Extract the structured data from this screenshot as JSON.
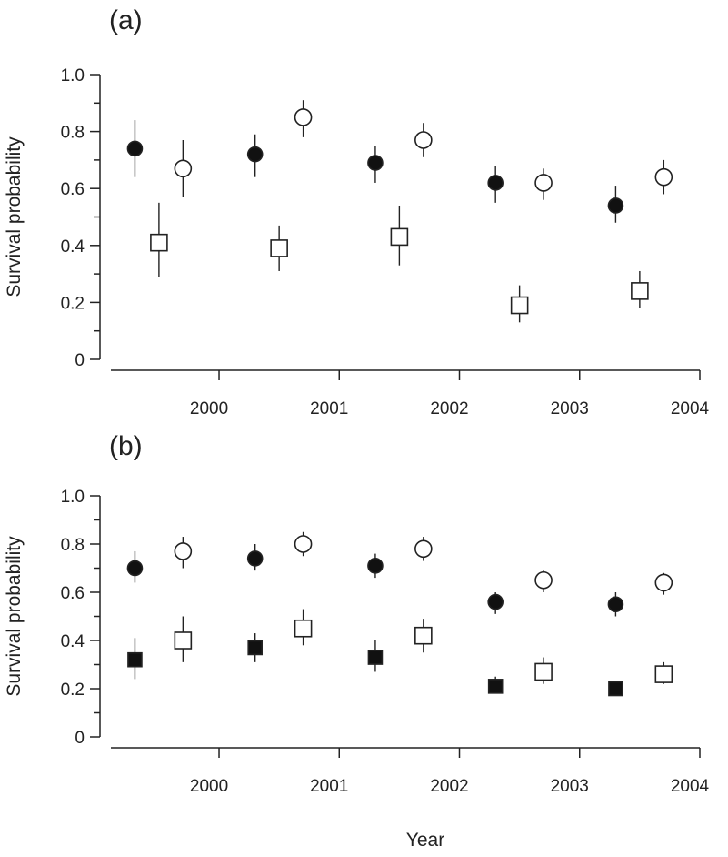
{
  "chart_data": [
    {
      "type": "scatter",
      "panel_label": "(a)",
      "ylabel": "Survival probability",
      "xlim": [
        1999.1,
        2004.0
      ],
      "ylim": [
        0,
        1.0
      ],
      "x_ticks": [
        "2000",
        "2001",
        "2002",
        "2003",
        "2004"
      ],
      "y_ticks": [
        "0",
        "0.2",
        "0.4",
        "0.6",
        "0.8",
        "1.0"
      ],
      "grid": false,
      "series": [
        {
          "marker": "filled-circle",
          "points": [
            {
              "x": 1999.3,
              "y": 0.74,
              "lo": 0.64,
              "hi": 0.84
            },
            {
              "x": 2000.3,
              "y": 0.72,
              "lo": 0.64,
              "hi": 0.79
            },
            {
              "x": 2001.3,
              "y": 0.69,
              "lo": 0.62,
              "hi": 0.75
            },
            {
              "x": 2002.3,
              "y": 0.62,
              "lo": 0.55,
              "hi": 0.68
            },
            {
              "x": 2003.3,
              "y": 0.54,
              "lo": 0.48,
              "hi": 0.61
            }
          ]
        },
        {
          "marker": "open-circle",
          "points": [
            {
              "x": 1999.7,
              "y": 0.67,
              "lo": 0.57,
              "hi": 0.77
            },
            {
              "x": 2000.7,
              "y": 0.85,
              "lo": 0.78,
              "hi": 0.91
            },
            {
              "x": 2001.7,
              "y": 0.77,
              "lo": 0.71,
              "hi": 0.83
            },
            {
              "x": 2002.7,
              "y": 0.62,
              "lo": 0.56,
              "hi": 0.67
            },
            {
              "x": 2003.7,
              "y": 0.64,
              "lo": 0.58,
              "hi": 0.7
            }
          ]
        },
        {
          "marker": "open-square",
          "points": [
            {
              "x": 1999.5,
              "y": 0.41,
              "lo": 0.29,
              "hi": 0.55
            },
            {
              "x": 2000.5,
              "y": 0.39,
              "lo": 0.31,
              "hi": 0.47
            },
            {
              "x": 2001.5,
              "y": 0.43,
              "lo": 0.33,
              "hi": 0.54
            },
            {
              "x": 2002.5,
              "y": 0.19,
              "lo": 0.13,
              "hi": 0.26
            },
            {
              "x": 2003.5,
              "y": 0.24,
              "lo": 0.18,
              "hi": 0.31
            }
          ]
        }
      ]
    },
    {
      "type": "scatter",
      "panel_label": "(b)",
      "ylabel": "Survival probability",
      "xlabel": "Year",
      "xlim": [
        1999.1,
        2004.0
      ],
      "ylim": [
        0,
        1.0
      ],
      "x_ticks": [
        "2000",
        "2001",
        "2002",
        "2003",
        "2004"
      ],
      "y_ticks": [
        "0",
        "0.2",
        "0.4",
        "0.6",
        "0.8",
        "1.0"
      ],
      "grid": false,
      "series": [
        {
          "marker": "filled-circle",
          "points": [
            {
              "x": 1999.3,
              "y": 0.7,
              "lo": 0.64,
              "hi": 0.77
            },
            {
              "x": 2000.3,
              "y": 0.74,
              "lo": 0.69,
              "hi": 0.8
            },
            {
              "x": 2001.3,
              "y": 0.71,
              "lo": 0.66,
              "hi": 0.76
            },
            {
              "x": 2002.3,
              "y": 0.56,
              "lo": 0.51,
              "hi": 0.6
            },
            {
              "x": 2003.3,
              "y": 0.55,
              "lo": 0.5,
              "hi": 0.6
            }
          ]
        },
        {
          "marker": "open-circle",
          "points": [
            {
              "x": 1999.7,
              "y": 0.77,
              "lo": 0.7,
              "hi": 0.83
            },
            {
              "x": 2000.7,
              "y": 0.8,
              "lo": 0.75,
              "hi": 0.85
            },
            {
              "x": 2001.7,
              "y": 0.78,
              "lo": 0.73,
              "hi": 0.83
            },
            {
              "x": 2002.7,
              "y": 0.65,
              "lo": 0.6,
              "hi": 0.69
            },
            {
              "x": 2003.7,
              "y": 0.64,
              "lo": 0.59,
              "hi": 0.68
            }
          ]
        },
        {
          "marker": "filled-square",
          "points": [
            {
              "x": 1999.3,
              "y": 0.32,
              "lo": 0.24,
              "hi": 0.41
            },
            {
              "x": 2000.3,
              "y": 0.37,
              "lo": 0.31,
              "hi": 0.43
            },
            {
              "x": 2001.3,
              "y": 0.33,
              "lo": 0.27,
              "hi": 0.4
            },
            {
              "x": 2002.3,
              "y": 0.21,
              "lo": 0.18,
              "hi": 0.25
            },
            {
              "x": 2003.3,
              "y": 0.2,
              "lo": 0.17,
              "hi": 0.23
            }
          ]
        },
        {
          "marker": "open-square",
          "points": [
            {
              "x": 1999.7,
              "y": 0.4,
              "lo": 0.31,
              "hi": 0.5
            },
            {
              "x": 2000.7,
              "y": 0.45,
              "lo": 0.38,
              "hi": 0.53
            },
            {
              "x": 2001.7,
              "y": 0.42,
              "lo": 0.35,
              "hi": 0.49
            },
            {
              "x": 2002.7,
              "y": 0.27,
              "lo": 0.22,
              "hi": 0.33
            },
            {
              "x": 2003.7,
              "y": 0.26,
              "lo": 0.22,
              "hi": 0.31
            }
          ]
        }
      ]
    }
  ]
}
